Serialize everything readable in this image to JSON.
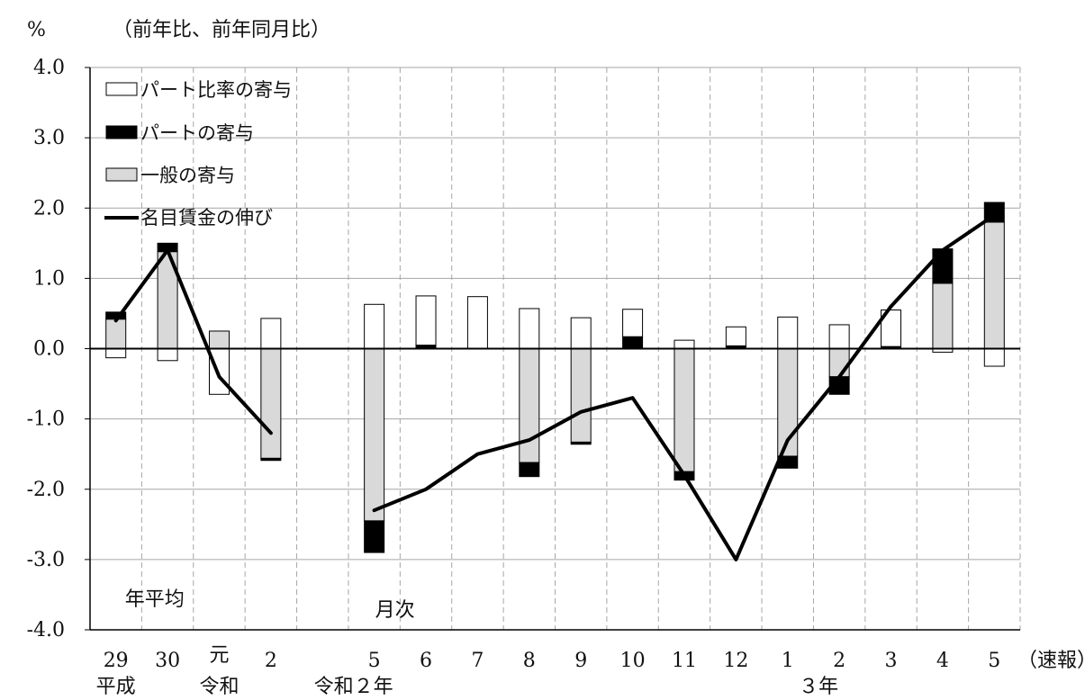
{
  "chart_data": {
    "type": "bar",
    "unit_label": "%",
    "title": "（前年比、前年同月比）",
    "ylim": [
      -4.0,
      4.0
    ],
    "yticks": [
      "4.0",
      "3.0",
      "2.0",
      "1.0",
      "0.0",
      "-1.0",
      "-2.0",
      "-3.0",
      "-4.0"
    ],
    "categories": [
      "29",
      "30",
      "元",
      "2",
      "5",
      "6",
      "7",
      "8",
      "9",
      "10",
      "11",
      "12",
      "1",
      "2",
      "3",
      "4",
      "5"
    ],
    "category_positions": [
      0,
      1,
      2,
      3,
      5,
      6,
      7,
      8,
      9,
      10,
      11,
      12,
      13,
      14,
      15,
      16,
      17
    ],
    "group_labels": [
      {
        "text": "平成",
        "at": 0
      },
      {
        "text": "令和",
        "at": 2
      },
      {
        "text": "令和２年",
        "at": 4.6
      },
      {
        "text": "３年",
        "at": 13.6
      }
    ],
    "suffix_label": "（速報）",
    "section_labels": [
      {
        "text": "年平均",
        "at": 0.75
      },
      {
        "text": "月次",
        "at": 5.4
      }
    ],
    "stacked": true,
    "series": [
      {
        "name": "パート比率の寄与",
        "color": "#ffffff",
        "kind": "bar",
        "values": [
          -0.13,
          -0.17,
          -0.65,
          0.43,
          0.63,
          0.7,
          0.74,
          0.57,
          0.44,
          0.39,
          0.12,
          0.27,
          0.45,
          0.34,
          0.52,
          -0.05,
          -0.25
        ]
      },
      {
        "name": "パートの寄与",
        "color": "#000000",
        "kind": "bar",
        "values": [
          0.1,
          0.12,
          0.0,
          -0.03,
          -0.45,
          0.05,
          0.0,
          -0.2,
          -0.03,
          0.17,
          -0.12,
          0.04,
          -0.17,
          -0.25,
          0.03,
          0.49,
          0.28
        ]
      },
      {
        "name": "一般の寄与",
        "color": "#d9d9d9",
        "kind": "bar",
        "values": [
          0.42,
          1.38,
          0.25,
          -1.56,
          -2.45,
          0.0,
          0.0,
          -1.62,
          -1.33,
          0.0,
          -1.75,
          0.0,
          -1.53,
          -0.4,
          0.0,
          0.93,
          1.8
        ]
      },
      {
        "name": "名目賃金の伸び",
        "color": "#000000",
        "kind": "line",
        "values": [
          0.4,
          1.4,
          -0.4,
          -1.2,
          -2.3,
          -2.0,
          -1.5,
          -1.3,
          -0.9,
          -0.7,
          -1.8,
          -3.0,
          -1.3,
          -0.4,
          0.6,
          1.4,
          1.9
        ]
      }
    ],
    "gridlines": true
  }
}
